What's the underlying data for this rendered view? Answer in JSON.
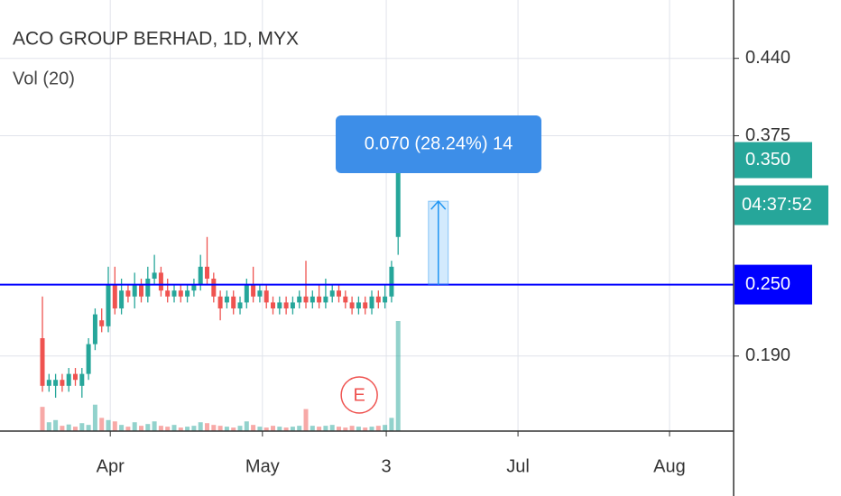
{
  "header": {
    "title": "ACO GROUP BERHAD, 1D, MYX",
    "indicator": "Vol (20)"
  },
  "chart_data": {
    "type": "candlestick",
    "x": [
      0,
      1,
      2,
      3,
      4,
      5,
      6,
      7,
      8,
      9,
      10,
      11,
      12,
      13,
      14,
      15,
      16,
      17,
      18,
      19,
      20,
      21,
      22,
      23,
      24,
      25,
      26,
      27,
      28,
      29,
      30,
      31,
      32,
      33,
      34,
      35,
      36,
      37,
      38,
      39,
      40,
      41,
      42,
      43,
      44,
      45,
      46,
      47,
      48,
      49,
      50,
      51,
      52,
      53,
      54
    ],
    "open": [
      0.205,
      0.165,
      0.165,
      0.17,
      0.165,
      0.175,
      0.165,
      0.175,
      0.2,
      0.22,
      0.215,
      0.25,
      0.23,
      0.245,
      0.24,
      0.25,
      0.24,
      0.255,
      0.26,
      0.245,
      0.24,
      0.245,
      0.24,
      0.245,
      0.25,
      0.265,
      0.255,
      0.24,
      0.235,
      0.24,
      0.23,
      0.235,
      0.25,
      0.24,
      0.245,
      0.235,
      0.23,
      0.235,
      0.23,
      0.235,
      0.24,
      0.235,
      0.24,
      0.235,
      0.24,
      0.245,
      0.24,
      0.235,
      0.23,
      0.235,
      0.23,
      0.24,
      0.235,
      0.24,
      0.29
    ],
    "high": [
      0.24,
      0.175,
      0.175,
      0.175,
      0.18,
      0.18,
      0.18,
      0.205,
      0.23,
      0.23,
      0.265,
      0.265,
      0.255,
      0.25,
      0.26,
      0.255,
      0.265,
      0.275,
      0.265,
      0.255,
      0.25,
      0.25,
      0.25,
      0.255,
      0.275,
      0.29,
      0.26,
      0.245,
      0.245,
      0.245,
      0.24,
      0.255,
      0.265,
      0.25,
      0.25,
      0.24,
      0.24,
      0.24,
      0.24,
      0.245,
      0.27,
      0.245,
      0.25,
      0.255,
      0.25,
      0.25,
      0.245,
      0.24,
      0.24,
      0.24,
      0.245,
      0.245,
      0.25,
      0.27,
      0.365
    ],
    "low": [
      0.16,
      0.16,
      0.155,
      0.16,
      0.16,
      0.165,
      0.155,
      0.17,
      0.195,
      0.21,
      0.21,
      0.225,
      0.225,
      0.235,
      0.23,
      0.235,
      0.235,
      0.25,
      0.24,
      0.235,
      0.235,
      0.235,
      0.235,
      0.24,
      0.245,
      0.25,
      0.235,
      0.22,
      0.23,
      0.225,
      0.225,
      0.23,
      0.235,
      0.235,
      0.23,
      0.225,
      0.225,
      0.225,
      0.225,
      0.23,
      0.23,
      0.23,
      0.23,
      0.23,
      0.235,
      0.235,
      0.23,
      0.225,
      0.225,
      0.225,
      0.225,
      0.23,
      0.23,
      0.235,
      0.275
    ],
    "close": [
      0.165,
      0.17,
      0.17,
      0.165,
      0.175,
      0.17,
      0.175,
      0.2,
      0.225,
      0.215,
      0.25,
      0.23,
      0.245,
      0.24,
      0.25,
      0.24,
      0.255,
      0.26,
      0.245,
      0.24,
      0.245,
      0.24,
      0.245,
      0.25,
      0.265,
      0.255,
      0.24,
      0.23,
      0.24,
      0.23,
      0.235,
      0.25,
      0.24,
      0.245,
      0.235,
      0.23,
      0.235,
      0.23,
      0.235,
      0.24,
      0.235,
      0.24,
      0.235,
      0.24,
      0.245,
      0.24,
      0.235,
      0.23,
      0.235,
      0.23,
      0.24,
      0.235,
      0.24,
      0.265,
      0.35
    ],
    "volume": [
      55,
      20,
      25,
      12,
      15,
      10,
      18,
      14,
      60,
      30,
      25,
      22,
      14,
      10,
      20,
      12,
      16,
      22,
      12,
      10,
      14,
      8,
      10,
      12,
      20,
      18,
      14,
      12,
      10,
      8,
      12,
      22,
      14,
      10,
      8,
      12,
      10,
      8,
      10,
      12,
      50,
      12,
      10,
      12,
      14,
      10,
      8,
      12,
      10,
      8,
      10,
      12,
      14,
      30,
      250
    ],
    "up_color": "#26a69a",
    "down_color": "#ef5350",
    "xlim": [
      -6.44,
      104.93
    ],
    "xticks": [
      {
        "value": 10.3,
        "label": "Apr"
      },
      {
        "value": 33.4,
        "label": "May"
      },
      {
        "value": 52.2,
        "label": "3"
      },
      {
        "value": 72.2,
        "label": "Jul"
      },
      {
        "value": 95.2,
        "label": "Aug"
      }
    ],
    "ylim": [
      0.127,
      0.489
    ],
    "yticks": [
      {
        "value": 0.19,
        "label": "0.190"
      },
      0.375,
      {
        "value": 0.44,
        "label": "0.440"
      }
    ],
    "grid": true,
    "last_price": {
      "value": 0.35,
      "label": "0.350"
    },
    "countdown": "04:37:52",
    "hline": {
      "value": 0.25,
      "label": "0.250",
      "color": "#0000ff"
    },
    "measure": {
      "label": "0.070 (28.24%) 14",
      "from": 0.25,
      "to": 0.32,
      "x_from": 58.6,
      "x_to": 61.6
    },
    "earnings": {
      "label": "E",
      "x": 48.1
    }
  }
}
